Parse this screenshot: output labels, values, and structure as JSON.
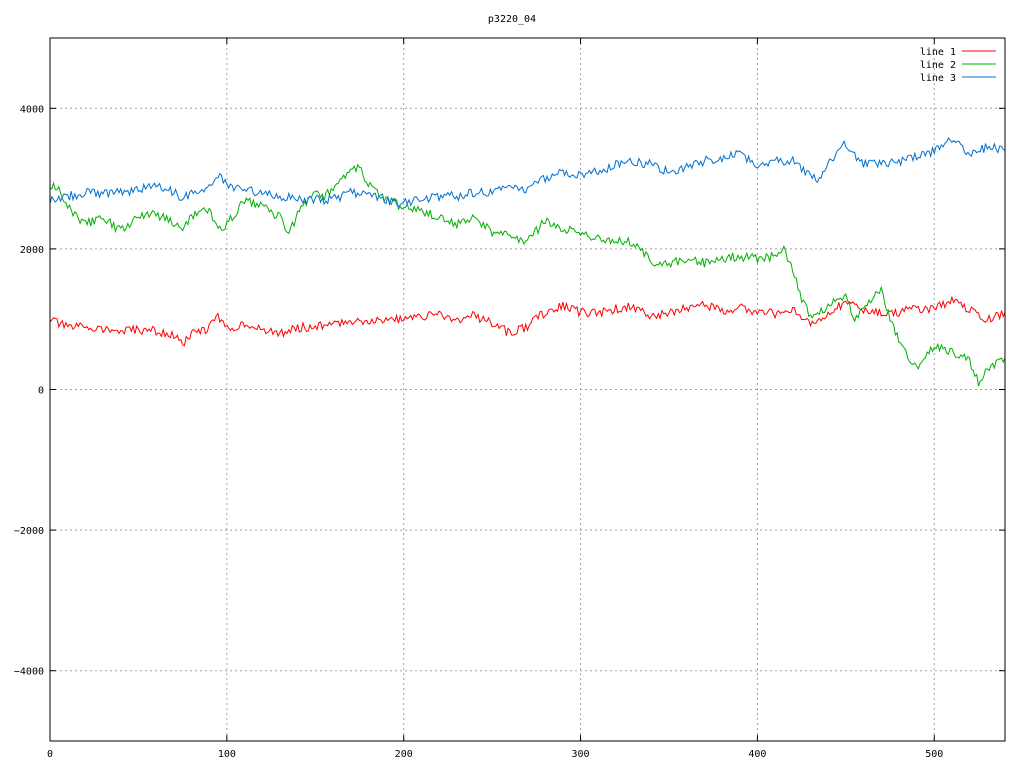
{
  "chart_data": {
    "type": "line",
    "title": "p3220_04",
    "xlabel": "",
    "ylabel": "",
    "xlim": [
      0,
      540
    ],
    "ylim": [
      -5000,
      5000
    ],
    "xticks": [
      0,
      100,
      200,
      300,
      400,
      500
    ],
    "yticks": [
      -4000,
      -2000,
      0,
      2000,
      4000
    ],
    "grid": true,
    "legend_position": "top-right",
    "series": [
      {
        "name": "line 1",
        "color": "#ff0000",
        "x": [
          0,
          10,
          20,
          30,
          40,
          50,
          60,
          70,
          75,
          80,
          90,
          95,
          100,
          110,
          120,
          130,
          140,
          150,
          160,
          170,
          180,
          190,
          200,
          210,
          220,
          230,
          240,
          250,
          260,
          270,
          280,
          290,
          300,
          310,
          320,
          330,
          340,
          350,
          360,
          370,
          380,
          390,
          400,
          410,
          420,
          430,
          435,
          440,
          450,
          460,
          470,
          480,
          490,
          500,
          510,
          520,
          530,
          540
        ],
        "y": [
          1000,
          880,
          900,
          860,
          820,
          850,
          830,
          760,
          650,
          780,
          880,
          1050,
          850,
          950,
          830,
          800,
          880,
          900,
          920,
          980,
          980,
          1000,
          1000,
          1030,
          1080,
          980,
          1050,
          950,
          800,
          900,
          1100,
          1200,
          1100,
          1080,
          1150,
          1180,
          1050,
          1100,
          1150,
          1200,
          1120,
          1180,
          1100,
          1080,
          1150,
          900,
          1000,
          1100,
          1250,
          1150,
          1100,
          1100,
          1150,
          1150,
          1250,
          1150,
          1000,
          1100
        ]
      },
      {
        "name": "line 2",
        "color": "#00b000",
        "x": [
          0,
          5,
          10,
          20,
          30,
          40,
          50,
          60,
          70,
          75,
          80,
          90,
          95,
          100,
          110,
          120,
          130,
          135,
          140,
          150,
          155,
          160,
          170,
          175,
          180,
          185,
          190,
          200,
          210,
          220,
          230,
          240,
          250,
          260,
          270,
          280,
          290,
          300,
          310,
          320,
          330,
          340,
          345,
          350,
          360,
          370,
          380,
          390,
          400,
          410,
          415,
          420,
          425,
          430,
          440,
          445,
          450,
          455,
          460,
          465,
          470,
          475,
          480,
          485,
          490,
          495,
          500,
          510,
          520,
          525,
          530,
          540
        ],
        "y": [
          2900,
          2900,
          2600,
          2350,
          2450,
          2250,
          2450,
          2500,
          2350,
          2250,
          2450,
          2550,
          2300,
          2350,
          2700,
          2600,
          2450,
          2200,
          2500,
          2800,
          2750,
          2850,
          3100,
          3200,
          2900,
          2800,
          2700,
          2600,
          2550,
          2450,
          2350,
          2450,
          2250,
          2200,
          2100,
          2400,
          2300,
          2200,
          2150,
          2100,
          2100,
          1800,
          1750,
          1800,
          1850,
          1800,
          1850,
          1900,
          1850,
          1900,
          2000,
          1700,
          1300,
          1000,
          1200,
          1300,
          1350,
          1000,
          1200,
          1300,
          1400,
          1000,
          700,
          500,
          300,
          500,
          600,
          550,
          400,
          100,
          300,
          450
        ]
      },
      {
        "name": "line 3",
        "color": "#0070d0",
        "x": [
          0,
          10,
          20,
          30,
          40,
          50,
          60,
          70,
          75,
          80,
          90,
          95,
          100,
          110,
          120,
          130,
          140,
          150,
          160,
          170,
          180,
          190,
          200,
          210,
          220,
          230,
          240,
          250,
          260,
          270,
          280,
          290,
          300,
          310,
          320,
          330,
          340,
          350,
          360,
          370,
          380,
          390,
          400,
          410,
          420,
          430,
          435,
          440,
          450,
          460,
          470,
          480,
          490,
          500,
          510,
          520,
          530,
          540
        ],
        "y": [
          2700,
          2750,
          2800,
          2800,
          2800,
          2850,
          2900,
          2800,
          2700,
          2800,
          2900,
          3050,
          2900,
          2850,
          2800,
          2750,
          2700,
          2700,
          2700,
          2800,
          2800,
          2700,
          2650,
          2700,
          2750,
          2750,
          2800,
          2800,
          2850,
          2850,
          3000,
          3100,
          3050,
          3100,
          3200,
          3250,
          3200,
          3100,
          3150,
          3250,
          3300,
          3350,
          3200,
          3250,
          3250,
          3050,
          3000,
          3200,
          3500,
          3200,
          3200,
          3250,
          3300,
          3400,
          3550,
          3350,
          3450,
          3400
        ]
      }
    ]
  }
}
